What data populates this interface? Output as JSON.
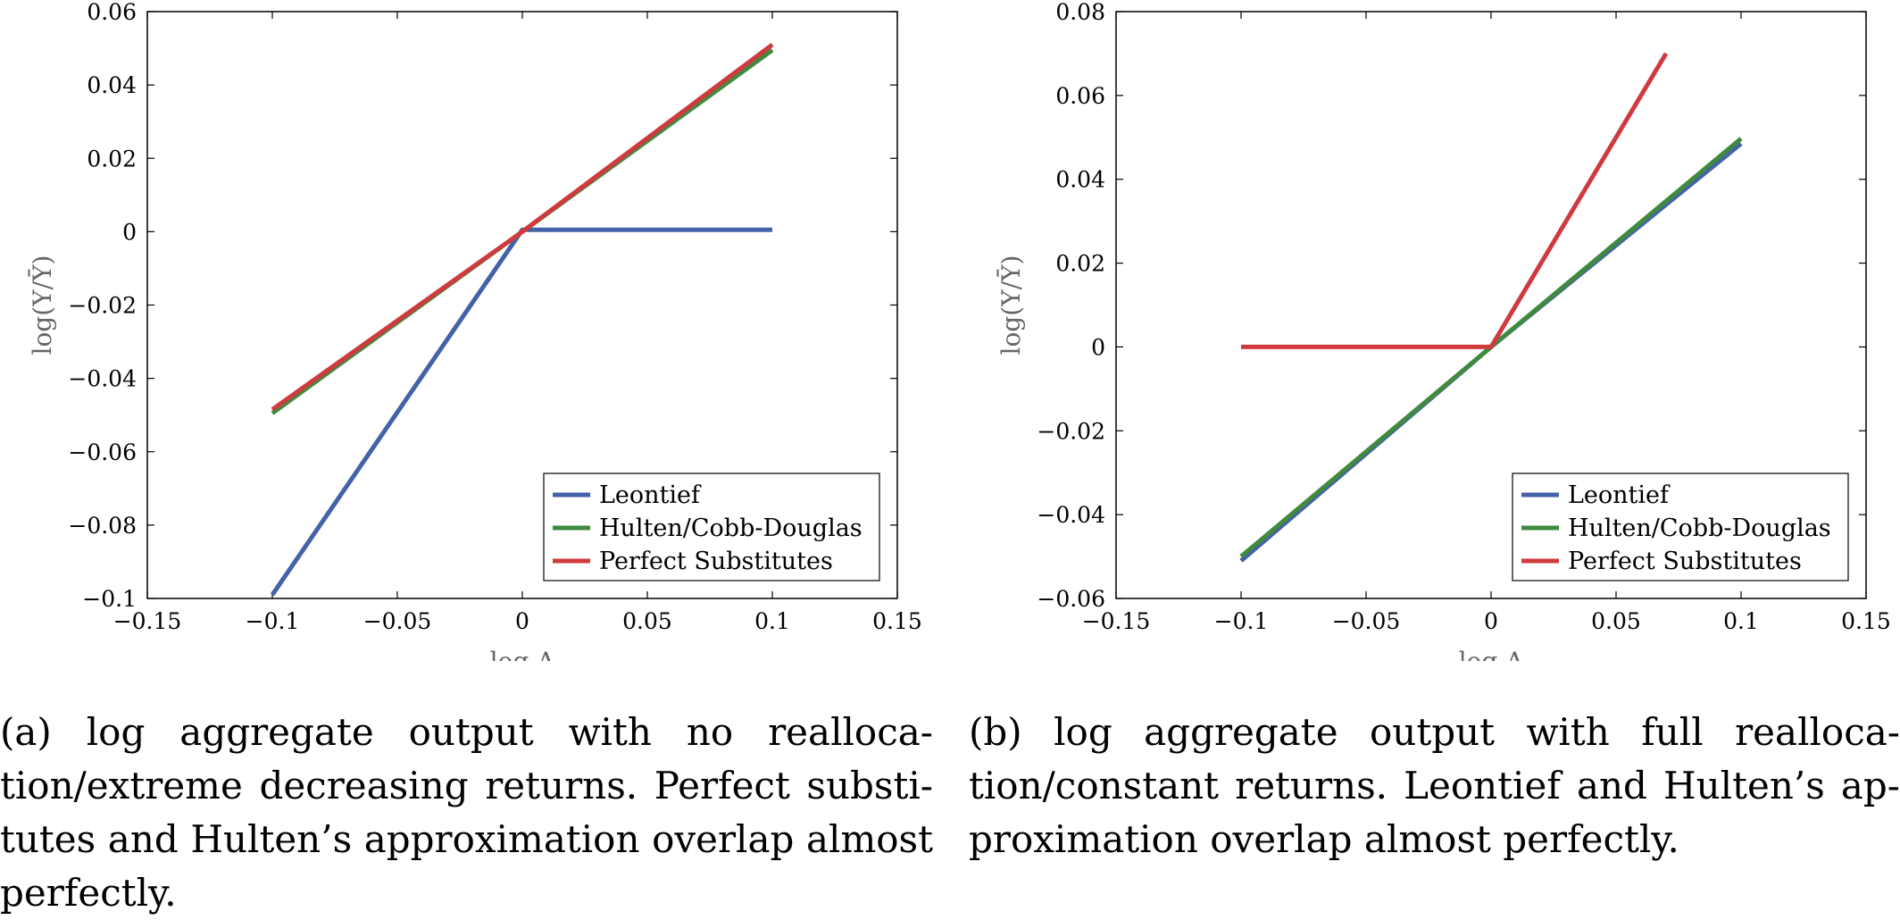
{
  "chart_data": [
    {
      "type": "line",
      "panel": "a",
      "xlabel": "log A",
      "ylabel": "log(Y/Ȳ)",
      "xlim": [
        -0.15,
        0.15
      ],
      "ylim": [
        -0.1,
        0.06
      ],
      "xticks": [
        "−0.15",
        "−0.1",
        "−0.05",
        "0",
        "0.05",
        "0.1",
        "0.15"
      ],
      "xtick_values": [
        -0.15,
        -0.1,
        -0.05,
        0,
        0.05,
        0.1,
        0.15
      ],
      "yticks": [
        "0.06",
        "0.04",
        "0.02",
        "0",
        "−0.02",
        "−0.04",
        "−0.06",
        "−0.08",
        "−0.1"
      ],
      "ytick_values": [
        0.06,
        0.04,
        0.02,
        0,
        -0.02,
        -0.04,
        -0.06,
        -0.08,
        -0.1
      ],
      "grid": false,
      "legend_position": "bottom-right",
      "series": [
        {
          "name": "Leontief",
          "color": "#4462a8",
          "x": [
            -0.1,
            0,
            0.1
          ],
          "y": [
            -0.099,
            0.0005,
            0.0005
          ]
        },
        {
          "name": "Hulten/Cobb-Douglas",
          "color": "#3f8a3f",
          "x": [
            -0.1,
            0,
            0.1
          ],
          "y": [
            -0.0495,
            0,
            0.0495
          ]
        },
        {
          "name": "Perfect Substitutes",
          "color": "#d03a3e",
          "x": [
            -0.1,
            0,
            0.1
          ],
          "y": [
            -0.0485,
            0,
            0.051
          ]
        }
      ]
    },
    {
      "type": "line",
      "panel": "b",
      "xlabel": "log A",
      "ylabel": "log(Y/Ȳ)",
      "xlim": [
        -0.15,
        0.15
      ],
      "ylim": [
        -0.06,
        0.08
      ],
      "xticks": [
        "−0.15",
        "−0.1",
        "−0.05",
        "0",
        "0.05",
        "0.1",
        "0.15"
      ],
      "xtick_values": [
        -0.15,
        -0.1,
        -0.05,
        0,
        0.05,
        0.1,
        0.15
      ],
      "yticks": [
        "0.08",
        "0.06",
        "0.04",
        "0.02",
        "0",
        "−0.02",
        "−0.04",
        "−0.06"
      ],
      "ytick_values": [
        0.08,
        0.06,
        0.04,
        0.02,
        0,
        -0.02,
        -0.04,
        -0.06
      ],
      "grid": false,
      "legend_position": "bottom-right",
      "series": [
        {
          "name": "Leontief",
          "color": "#4462a8",
          "x": [
            -0.1,
            0,
            0.1
          ],
          "y": [
            -0.051,
            0,
            0.0485
          ]
        },
        {
          "name": "Hulten/Cobb-Douglas",
          "color": "#3f8a3f",
          "x": [
            -0.1,
            0,
            0.1
          ],
          "y": [
            -0.05,
            0,
            0.0497
          ]
        },
        {
          "name": "Perfect Substitutes",
          "color": "#d03a3e",
          "x": [
            -0.1,
            0,
            0.07
          ],
          "y": [
            0,
            0,
            0.07
          ]
        }
      ]
    }
  ],
  "captions": {
    "a": "(a) log aggregate output with no realloca­tion/extreme decreasing returns. Perfect substi­tutes and Hulten’s approximation overlap almost perfectly.",
    "b": "(b) log aggregate output with full realloca­tion/constant returns. Leontief and Hulten’s ap­proximation overlap almost perfectly."
  }
}
